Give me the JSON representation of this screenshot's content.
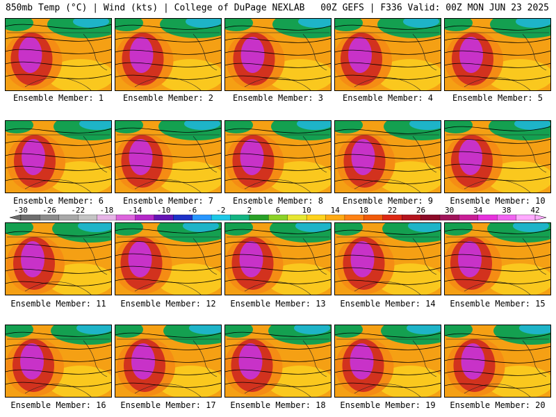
{
  "header": {
    "left": "850mb Temp (°C) | Wind (kts) | College of DuPage NEXLAB",
    "right": "00Z GEFS | F336 Valid: 00Z MON JUN 23 2025"
  },
  "panel_label_prefix": "Ensemble Member: ",
  "members": [
    "1",
    "2",
    "3",
    "4",
    "5",
    "6",
    "7",
    "8",
    "9",
    "10",
    "11",
    "12",
    "13",
    "14",
    "15",
    "16",
    "17",
    "18",
    "19",
    "20"
  ],
  "colorbar": {
    "labels": [
      "-30",
      "-26",
      "-22",
      "-18",
      "-14",
      "-10",
      "-6",
      "-2",
      "2",
      "6",
      "10",
      "14",
      "18",
      "22",
      "26",
      "30",
      "34",
      "38",
      "42"
    ],
    "colors": [
      "#6e6e6e",
      "#8c8c8c",
      "#a8a8a8",
      "#c4c4c4",
      "#e6b4e6",
      "#dc64dc",
      "#b428c8",
      "#6414b4",
      "#1e32c8",
      "#2896ff",
      "#1ec8e6",
      "#14b482",
      "#28a028",
      "#8cd228",
      "#e6e632",
      "#ffd21e",
      "#ffaa14",
      "#ff8214",
      "#f05a0a",
      "#dc2814",
      "#b4141e",
      "#8c0a28",
      "#a0145a",
      "#c81e96",
      "#e632dc",
      "#f064f0",
      "#ffaaff"
    ]
  },
  "colors": {
    "hot_core": "#c832c8",
    "very_hot": "#d2321e",
    "warm": "#f58c14",
    "mild": "#fac81e",
    "cool": "#14a050",
    "cold": "#1eb4c8",
    "land_base": "#f5a014"
  }
}
